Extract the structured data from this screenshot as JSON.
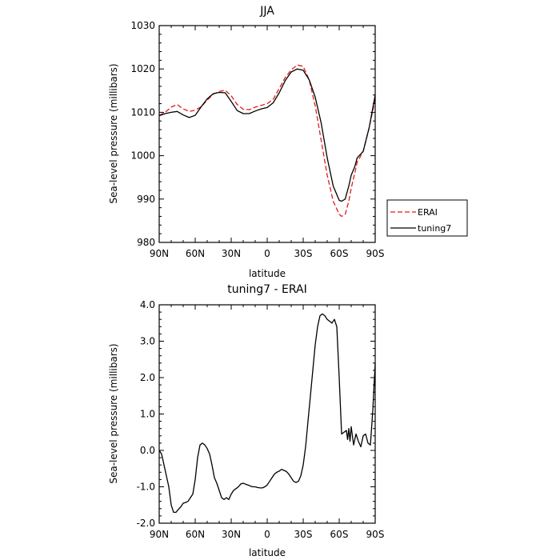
{
  "chart_data": [
    {
      "type": "line",
      "title": "JJA",
      "xlabel": "latitude",
      "ylabel": "Sea-level pressure (millibars)",
      "xlim": [
        90,
        -90
      ],
      "ylim": [
        980,
        1030
      ],
      "xticks": [
        {
          "value": 90,
          "label": "90N"
        },
        {
          "value": 60,
          "label": "60N"
        },
        {
          "value": 30,
          "label": "30N"
        },
        {
          "value": 0,
          "label": "0"
        },
        {
          "value": -30,
          "label": "30S"
        },
        {
          "value": -60,
          "label": "60S"
        },
        {
          "value": -90,
          "label": "90S"
        }
      ],
      "yticks": [
        980,
        990,
        1000,
        1010,
        1020,
        1030
      ],
      "legend": "right",
      "series": [
        {
          "name": "ERAI",
          "color": "#e41a1c",
          "dash": true,
          "x": [
            90,
            85,
            80,
            75,
            70,
            65,
            60,
            55,
            50,
            45,
            40,
            35,
            30,
            25,
            20,
            15,
            10,
            5,
            0,
            -5,
            -10,
            -15,
            -20,
            -25,
            -30,
            -35,
            -40,
            -45,
            -50,
            -55,
            -60,
            -62,
            -65,
            -68,
            -70,
            -73,
            -75,
            -80,
            -85,
            -90
          ],
          "values": [
            1009.3,
            1010.0,
            1011.2,
            1011.8,
            1010.8,
            1010.2,
            1010.5,
            1011.3,
            1012.8,
            1014.2,
            1014.8,
            1015.1,
            1013.8,
            1011.8,
            1010.7,
            1010.6,
            1011.2,
            1011.6,
            1012.0,
            1013.0,
            1015.5,
            1018.0,
            1019.8,
            1020.9,
            1020.6,
            1017.5,
            1011.5,
            1003.5,
            995.5,
            989.5,
            986.5,
            986.0,
            986.5,
            989.5,
            992.5,
            996.0,
            998.5,
            1001.0,
            1006.5,
            1013.0
          ]
        },
        {
          "name": "tuning7",
          "color": "#000000",
          "dash": false,
          "x": [
            90,
            85,
            80,
            75,
            70,
            65,
            60,
            55,
            50,
            45,
            40,
            35,
            30,
            25,
            20,
            15,
            10,
            5,
            0,
            -5,
            -10,
            -15,
            -20,
            -25,
            -30,
            -35,
            -40,
            -45,
            -50,
            -55,
            -60,
            -62,
            -65,
            -68,
            -70,
            -73,
            -75,
            -80,
            -85,
            -90
          ],
          "values": [
            1009.2,
            1009.7,
            1010.0,
            1010.2,
            1009.4,
            1008.8,
            1009.3,
            1011.3,
            1013.1,
            1014.3,
            1014.6,
            1014.5,
            1012.5,
            1010.4,
            1009.7,
            1009.7,
            1010.3,
            1010.8,
            1011.1,
            1012.2,
            1014.5,
            1017.3,
            1019.3,
            1020.0,
            1019.7,
            1017.5,
            1013.5,
            1007.5,
            999.5,
            993.0,
            989.7,
            989.5,
            990.0,
            993.0,
            995.5,
            997.5,
            999.5,
            1001.0,
            1006.5,
            1014.0
          ]
        }
      ]
    },
    {
      "type": "line",
      "title": "tuning7 - ERAI",
      "xlabel": "latitude",
      "ylabel": "Sea-level pressure (millibars)",
      "xlim": [
        90,
        -90
      ],
      "ylim": [
        -2.0,
        4.0
      ],
      "xticks": [
        {
          "value": 90,
          "label": "90N"
        },
        {
          "value": 60,
          "label": "60N"
        },
        {
          "value": 30,
          "label": "30N"
        },
        {
          "value": 0,
          "label": "0"
        },
        {
          "value": -30,
          "label": "30S"
        },
        {
          "value": -60,
          "label": "60S"
        },
        {
          "value": -90,
          "label": "90S"
        }
      ],
      "yticks": [
        {
          "value": -2.0,
          "label": "-2.0"
        },
        {
          "value": -1.0,
          "label": "-1.0"
        },
        {
          "value": 0.0,
          "label": "0.0"
        },
        {
          "value": 1.0,
          "label": "1.0"
        },
        {
          "value": 2.0,
          "label": "2.0"
        },
        {
          "value": 3.0,
          "label": "3.0"
        },
        {
          "value": 4.0,
          "label": "4.0"
        }
      ],
      "series": [
        {
          "color": "#000000",
          "dash": false,
          "x": [
            90,
            88,
            86,
            84,
            82,
            80,
            78,
            76,
            74,
            72,
            70,
            68,
            66,
            64,
            62,
            60,
            58,
            56,
            54,
            52,
            50,
            48,
            46,
            44,
            42,
            40,
            38,
            36,
            34,
            32,
            30,
            28,
            26,
            24,
            22,
            20,
            18,
            16,
            14,
            12,
            10,
            8,
            6,
            4,
            2,
            0,
            -2,
            -4,
            -6,
            -8,
            -10,
            -12,
            -14,
            -16,
            -18,
            -20,
            -22,
            -24,
            -26,
            -28,
            -30,
            -32,
            -34,
            -36,
            -38,
            -40,
            -42,
            -44,
            -46,
            -48,
            -50,
            -52,
            -54,
            -56,
            -58,
            -60,
            -62,
            -64,
            -66,
            -67,
            -68,
            -69,
            -70,
            -72,
            -74,
            -76,
            -78,
            -80,
            -82,
            -84,
            -86,
            -88,
            -90
          ],
          "values": [
            0.0,
            -0.1,
            -0.4,
            -0.7,
            -1.0,
            -1.5,
            -1.7,
            -1.7,
            -1.62,
            -1.55,
            -1.45,
            -1.43,
            -1.4,
            -1.3,
            -1.2,
            -0.8,
            -0.2,
            0.15,
            0.2,
            0.15,
            0.05,
            -0.1,
            -0.4,
            -0.75,
            -0.9,
            -1.1,
            -1.3,
            -1.35,
            -1.3,
            -1.35,
            -1.2,
            -1.1,
            -1.05,
            -1.0,
            -0.92,
            -0.9,
            -0.93,
            -0.95,
            -0.98,
            -1.0,
            -1.0,
            -1.02,
            -1.03,
            -1.03,
            -1.0,
            -0.95,
            -0.85,
            -0.75,
            -0.65,
            -0.6,
            -0.57,
            -0.52,
            -0.55,
            -0.58,
            -0.65,
            -0.75,
            -0.85,
            -0.88,
            -0.85,
            -0.7,
            -0.4,
            0.1,
            0.8,
            1.5,
            2.2,
            2.9,
            3.4,
            3.7,
            3.75,
            3.7,
            3.6,
            3.55,
            3.5,
            3.6,
            3.4,
            2.0,
            0.45,
            0.5,
            0.55,
            0.3,
            0.6,
            0.25,
            0.65,
            0.15,
            0.45,
            0.25,
            0.1,
            0.4,
            0.45,
            0.2,
            0.15,
            1.1,
            2.4
          ]
        }
      ]
    }
  ]
}
